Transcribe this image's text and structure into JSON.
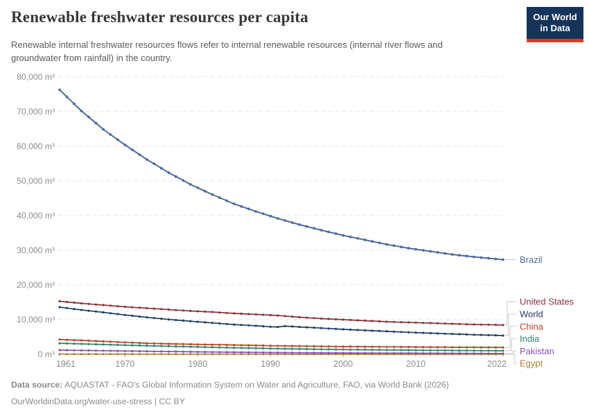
{
  "header": {
    "title": "Renewable freshwater resources per capita",
    "subtitle": "Renewable internal freshwater resources flows refer to internal renewable resources (internal river flows and groundwater from rainfall) in the country.",
    "logo": {
      "line1": "Our World",
      "line2": "in Data"
    }
  },
  "footer": {
    "source_label": "Data source:",
    "source_text": "AQUASTAT - FAO's Global Information System on Water and Agriculture, FAO, via World Bank (2026)",
    "license_line": "OurWorldinData.org/water-use-stress | CC BY"
  },
  "colors": {
    "grid": "#e3e3e3",
    "zero_line": "#b3b3b3",
    "axis_text": "#8c8c8c",
    "connector": "#c9c9c9",
    "logo_bg": "#16335A",
    "logo_stripe": "#DC3C22"
  },
  "chart_data": {
    "type": "line",
    "title": "Renewable freshwater resources per capita",
    "unit": "m³",
    "x_range": [
      1961,
      2022
    ],
    "y_range": [
      0,
      80000
    ],
    "grid": "horizontal dashed gridlines",
    "legend_position": "labels at right end of each line",
    "point_markers": "small circle at every year; values between listed anchor years are linearly interpolated",
    "x_ticks": [
      {
        "value": 1961,
        "label": "1961"
      },
      {
        "value": 1970,
        "label": "1970"
      },
      {
        "value": 1980,
        "label": "1980"
      },
      {
        "value": 1990,
        "label": "1990"
      },
      {
        "value": 2000,
        "label": "2000"
      },
      {
        "value": 2010,
        "label": "2010"
      },
      {
        "value": 2022,
        "label": "2022"
      }
    ],
    "y_ticks": [
      {
        "value": 0,
        "label": "0 m³"
      },
      {
        "value": 10000,
        "label": "10,000 m³"
      },
      {
        "value": 20000,
        "label": "20,000 m³"
      },
      {
        "value": 30000,
        "label": "30,000 m³"
      },
      {
        "value": 40000,
        "label": "40,000 m³"
      },
      {
        "value": 50000,
        "label": "50,000 m³"
      },
      {
        "value": 60000,
        "label": "60,000 m³"
      },
      {
        "value": 70000,
        "label": "70,000 m³"
      },
      {
        "value": 80000,
        "label": "80,000 m³"
      }
    ],
    "series": [
      {
        "name": "Brazil",
        "color": "#4C6A9C",
        "points": [
          [
            1961,
            76300
          ],
          [
            1964,
            70200
          ],
          [
            1967,
            64900
          ],
          [
            1970,
            60400
          ],
          [
            1973,
            56200
          ],
          [
            1976,
            52400
          ],
          [
            1979,
            49000
          ],
          [
            1982,
            46100
          ],
          [
            1985,
            43400
          ],
          [
            1988,
            41200
          ],
          [
            1991,
            39200
          ],
          [
            1994,
            37400
          ],
          [
            1997,
            35800
          ],
          [
            2000,
            34300
          ],
          [
            2003,
            33000
          ],
          [
            2006,
            31700
          ],
          [
            2009,
            30600
          ],
          [
            2012,
            29700
          ],
          [
            2015,
            28800
          ],
          [
            2018,
            28100
          ],
          [
            2021,
            27500
          ],
          [
            2022,
            27300
          ]
        ]
      },
      {
        "name": "United States",
        "color": "#883039",
        "points": [
          [
            1961,
            15300
          ],
          [
            1964,
            14700
          ],
          [
            1967,
            14200
          ],
          [
            1970,
            13700
          ],
          [
            1973,
            13300
          ],
          [
            1976,
            12900
          ],
          [
            1979,
            12500
          ],
          [
            1982,
            12200
          ],
          [
            1985,
            11800
          ],
          [
            1988,
            11500
          ],
          [
            1991,
            11200
          ],
          [
            1994,
            10700
          ],
          [
            1997,
            10300
          ],
          [
            2000,
            10000
          ],
          [
            2003,
            9700
          ],
          [
            2006,
            9400
          ],
          [
            2009,
            9200
          ],
          [
            2012,
            9000
          ],
          [
            2015,
            8800
          ],
          [
            2018,
            8600
          ],
          [
            2021,
            8500
          ],
          [
            2022,
            8450
          ]
        ]
      },
      {
        "name": "World",
        "color": "#1D3D63",
        "points": [
          [
            1961,
            13600
          ],
          [
            1964,
            12800
          ],
          [
            1967,
            12100
          ],
          [
            1970,
            11350
          ],
          [
            1973,
            10660
          ],
          [
            1976,
            10060
          ],
          [
            1979,
            9540
          ],
          [
            1982,
            9060
          ],
          [
            1985,
            8580
          ],
          [
            1988,
            8210
          ],
          [
            1990,
            7950
          ],
          [
            1991,
            7880
          ],
          [
            1992,
            8130
          ],
          [
            1993,
            8030
          ],
          [
            1994,
            7890
          ],
          [
            1997,
            7560
          ],
          [
            2000,
            7200
          ],
          [
            2003,
            6900
          ],
          [
            2006,
            6620
          ],
          [
            2009,
            6350
          ],
          [
            2012,
            6100
          ],
          [
            2015,
            5870
          ],
          [
            2018,
            5650
          ],
          [
            2021,
            5470
          ],
          [
            2022,
            5400
          ]
        ]
      },
      {
        "name": "China",
        "color": "#B64325",
        "points": [
          [
            1961,
            4260
          ],
          [
            1964,
            4030
          ],
          [
            1967,
            3730
          ],
          [
            1970,
            3440
          ],
          [
            1973,
            3190
          ],
          [
            1976,
            3020
          ],
          [
            1979,
            2900
          ],
          [
            1982,
            2790
          ],
          [
            1985,
            2680
          ],
          [
            1988,
            2560
          ],
          [
            1991,
            2450
          ],
          [
            1994,
            2360
          ],
          [
            1997,
            2290
          ],
          [
            2000,
            2230
          ],
          [
            2003,
            2180
          ],
          [
            2006,
            2150
          ],
          [
            2009,
            2110
          ],
          [
            2012,
            2080
          ],
          [
            2015,
            2040
          ],
          [
            2018,
            2010
          ],
          [
            2021,
            1990
          ],
          [
            2022,
            1990
          ]
        ]
      },
      {
        "name": "India",
        "color": "#2C8465",
        "points": [
          [
            1961,
            3170
          ],
          [
            1964,
            3000
          ],
          [
            1967,
            2830
          ],
          [
            1970,
            2640
          ],
          [
            1973,
            2470
          ],
          [
            1976,
            2310
          ],
          [
            1979,
            2160
          ],
          [
            1982,
            2010
          ],
          [
            1985,
            1880
          ],
          [
            1988,
            1760
          ],
          [
            1991,
            1640
          ],
          [
            1994,
            1530
          ],
          [
            1997,
            1440
          ],
          [
            2000,
            1370
          ],
          [
            2003,
            1310
          ],
          [
            2006,
            1250
          ],
          [
            2009,
            1200
          ],
          [
            2012,
            1150
          ],
          [
            2015,
            1100
          ],
          [
            2018,
            1060
          ],
          [
            2021,
            1030
          ],
          [
            2022,
            1020
          ]
        ]
      },
      {
        "name": "Pakistan",
        "color": "#8A51B4",
        "points": [
          [
            1961,
            1200
          ],
          [
            1964,
            1120
          ],
          [
            1967,
            1040
          ],
          [
            1970,
            950
          ],
          [
            1973,
            870
          ],
          [
            1976,
            800
          ],
          [
            1979,
            730
          ],
          [
            1982,
            660
          ],
          [
            1985,
            600
          ],
          [
            1988,
            540
          ],
          [
            1991,
            490
          ],
          [
            1994,
            450
          ],
          [
            1997,
            410
          ],
          [
            2000,
            380
          ],
          [
            2003,
            360
          ],
          [
            2006,
            340
          ],
          [
            2009,
            320
          ],
          [
            2012,
            300
          ],
          [
            2015,
            280
          ],
          [
            2018,
            260
          ],
          [
            2021,
            240
          ],
          [
            2022,
            230
          ]
        ]
      },
      {
        "name": "Egypt",
        "color": "#AE7E2E",
        "points": [
          [
            1961,
            64
          ],
          [
            1964,
            60
          ],
          [
            1967,
            56
          ],
          [
            1970,
            52
          ],
          [
            1973,
            49
          ],
          [
            1976,
            45
          ],
          [
            1979,
            42
          ],
          [
            1982,
            39
          ],
          [
            1985,
            36
          ],
          [
            1988,
            33
          ],
          [
            1991,
            31
          ],
          [
            1994,
            29
          ],
          [
            1997,
            27
          ],
          [
            2000,
            26
          ],
          [
            2003,
            24
          ],
          [
            2006,
            23
          ],
          [
            2009,
            22
          ],
          [
            2012,
            20
          ],
          [
            2015,
            19
          ],
          [
            2018,
            18
          ],
          [
            2021,
            17
          ],
          [
            2022,
            16
          ]
        ]
      }
    ]
  }
}
